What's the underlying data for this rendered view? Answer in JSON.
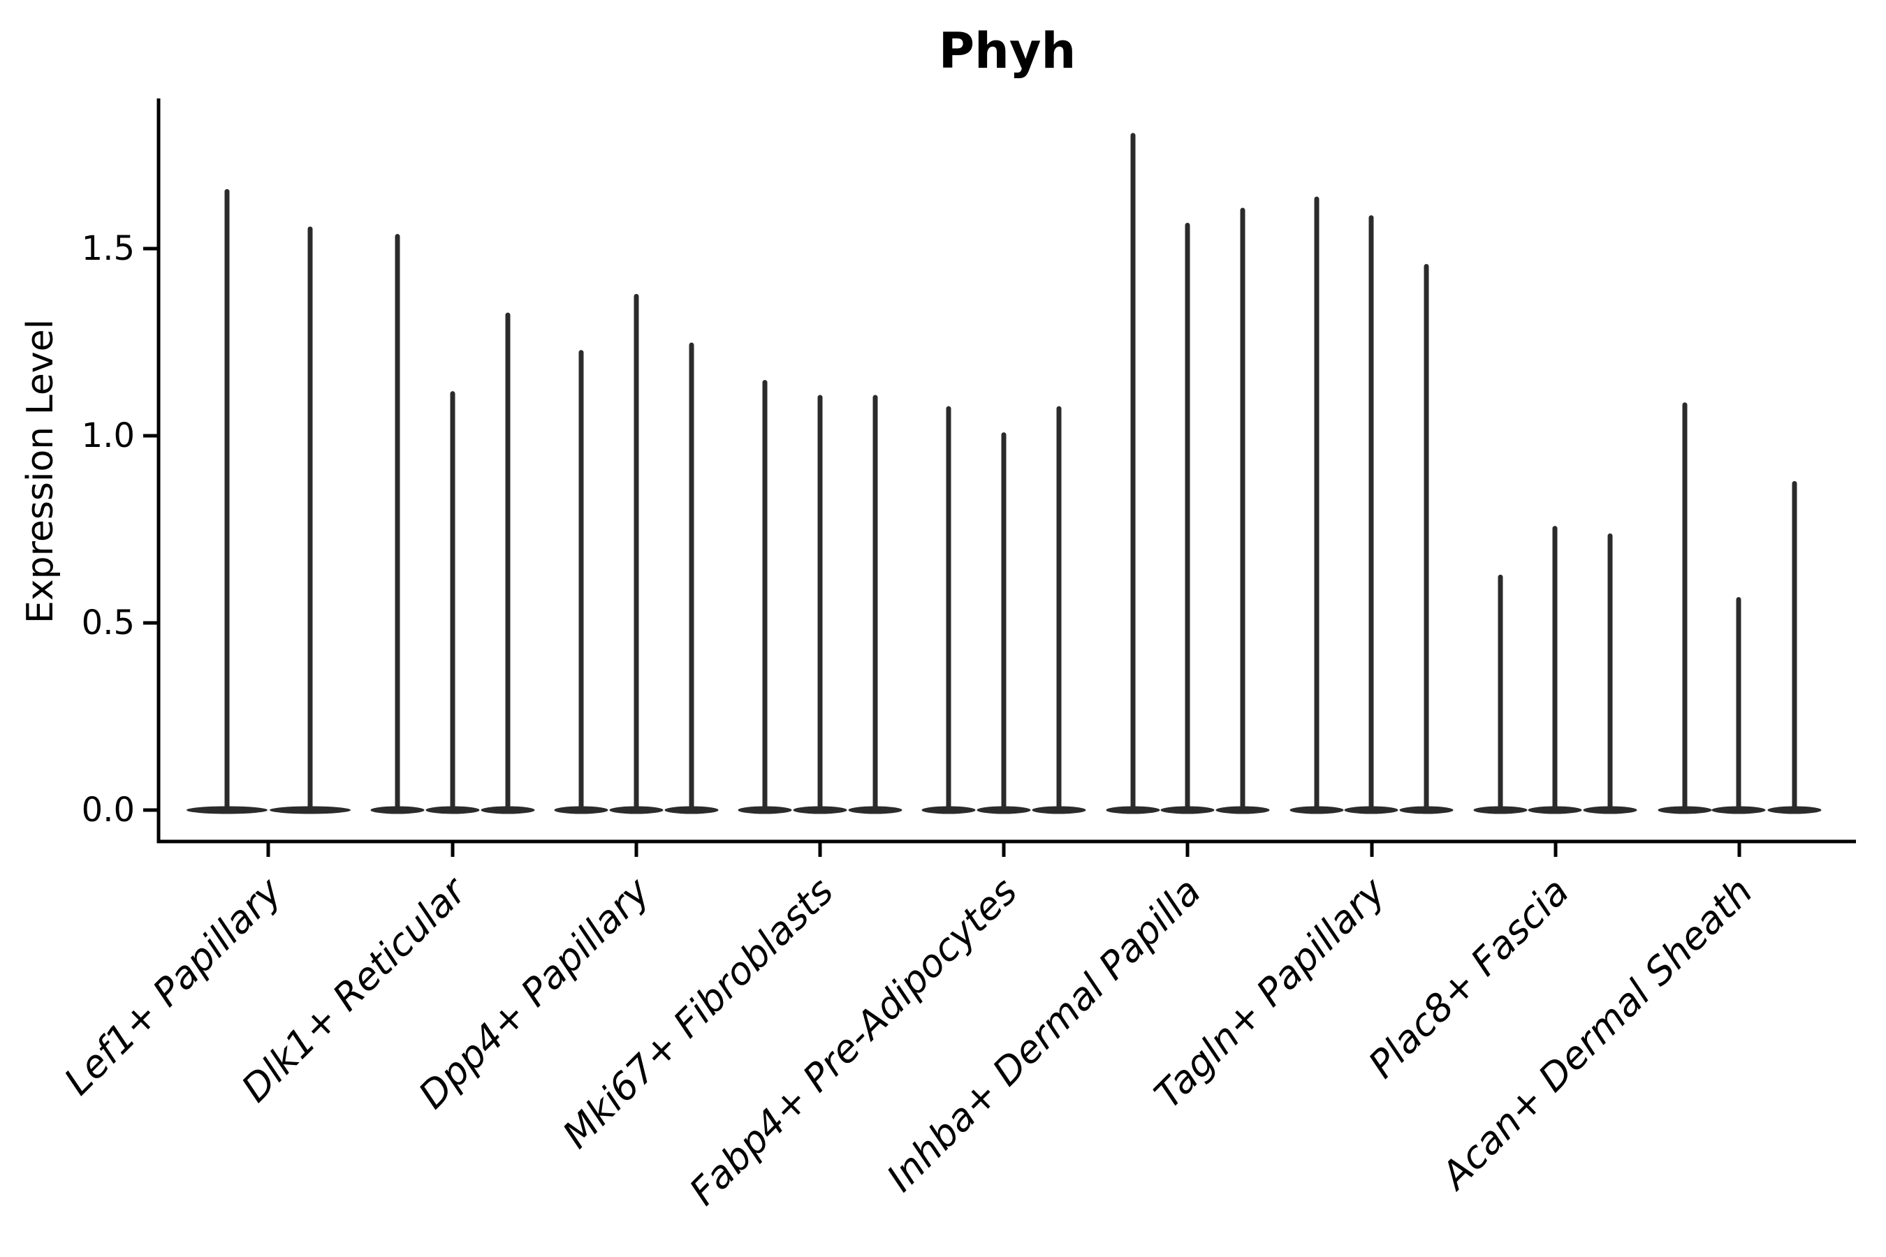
{
  "chart_data": {
    "type": "violin",
    "title": "Phyh",
    "ylabel": "Expression Level",
    "xlabel": "",
    "y_ticks": [
      {
        "label": "0.0",
        "value": 0.0
      },
      {
        "label": "0.5",
        "value": 0.5
      },
      {
        "label": "1.0",
        "value": 1.0
      },
      {
        "label": "1.5",
        "value": 1.5
      }
    ],
    "ylim": [
      -0.085,
      1.9
    ],
    "grid": false,
    "legend_position": "none",
    "description": "Violin plot of Phyh expression per fibroblast subtype; each group holds narrow violins whose mass sits at 0 with a thin spike up to the max expression value.",
    "categories": [
      "Lef1+ Papillary",
      "Dlk1+ Reticular",
      "Dpp4+ Papillary",
      "Mki67+ Fibroblasts",
      "Fabp4+ Pre-Adipocytes",
      "Inhba+ Dermal Papilla",
      "Tagln+ Papillary",
      "Plac8+ Fascia",
      "Acan+ Dermal Sheath"
    ],
    "groups": [
      {
        "label": "Lef1+ Papillary",
        "tick_x": 384,
        "violin_width": 118,
        "violins": [
          {
            "x": 325,
            "max": 1.66
          },
          {
            "x": 444,
            "max": 1.56
          }
        ]
      },
      {
        "label": "Dlk1+ Reticular",
        "tick_x": 648,
        "violin_width": 79,
        "violins": [
          {
            "x": 569,
            "max": 1.54
          },
          {
            "x": 648,
            "max": 1.12
          },
          {
            "x": 727,
            "max": 1.33
          }
        ]
      },
      {
        "label": "Dpp4+ Papillary",
        "tick_x": 911,
        "violin_width": 79,
        "violins": [
          {
            "x": 832,
            "max": 1.23
          },
          {
            "x": 911,
            "max": 1.38
          },
          {
            "x": 990,
            "max": 1.25
          }
        ]
      },
      {
        "label": "Mki67+ Fibroblasts",
        "tick_x": 1174,
        "violin_width": 79,
        "violins": [
          {
            "x": 1095,
            "max": 1.15
          },
          {
            "x": 1174,
            "max": 1.11
          },
          {
            "x": 1253,
            "max": 1.11
          }
        ]
      },
      {
        "label": "Fabp4+ Pre-Adipocytes",
        "tick_x": 1437,
        "violin_width": 79,
        "violins": [
          {
            "x": 1358,
            "max": 1.08
          },
          {
            "x": 1437,
            "max": 1.01
          },
          {
            "x": 1516,
            "max": 1.08
          }
        ]
      },
      {
        "label": "Inhba+ Dermal Papilla",
        "tick_x": 1700,
        "violin_width": 79,
        "violins": [
          {
            "x": 1622,
            "max": 1.81
          },
          {
            "x": 1700,
            "max": 1.57
          },
          {
            "x": 1779,
            "max": 1.61
          }
        ]
      },
      {
        "label": "Tagln+ Papillary",
        "tick_x": 1964,
        "violin_width": 79,
        "violins": [
          {
            "x": 1885,
            "max": 1.64
          },
          {
            "x": 1963,
            "max": 1.59
          },
          {
            "x": 2042,
            "max": 1.46
          }
        ]
      },
      {
        "label": "Plac8+ Fascia",
        "tick_x": 2227,
        "violin_width": 79,
        "violins": [
          {
            "x": 2148,
            "max": 0.63
          },
          {
            "x": 2226,
            "max": 0.76
          },
          {
            "x": 2305,
            "max": 0.74
          }
        ]
      },
      {
        "label": "Acan+ Dermal Sheath",
        "tick_x": 2490,
        "violin_width": 79,
        "violins": [
          {
            "x": 2412,
            "max": 1.09
          },
          {
            "x": 2489,
            "max": 0.57
          },
          {
            "x": 2569,
            "max": 0.88
          }
        ]
      }
    ],
    "colors": {
      "violin": "#2b2b2b",
      "axis": "#000000",
      "text": "#000000",
      "background": "#ffffff"
    }
  }
}
